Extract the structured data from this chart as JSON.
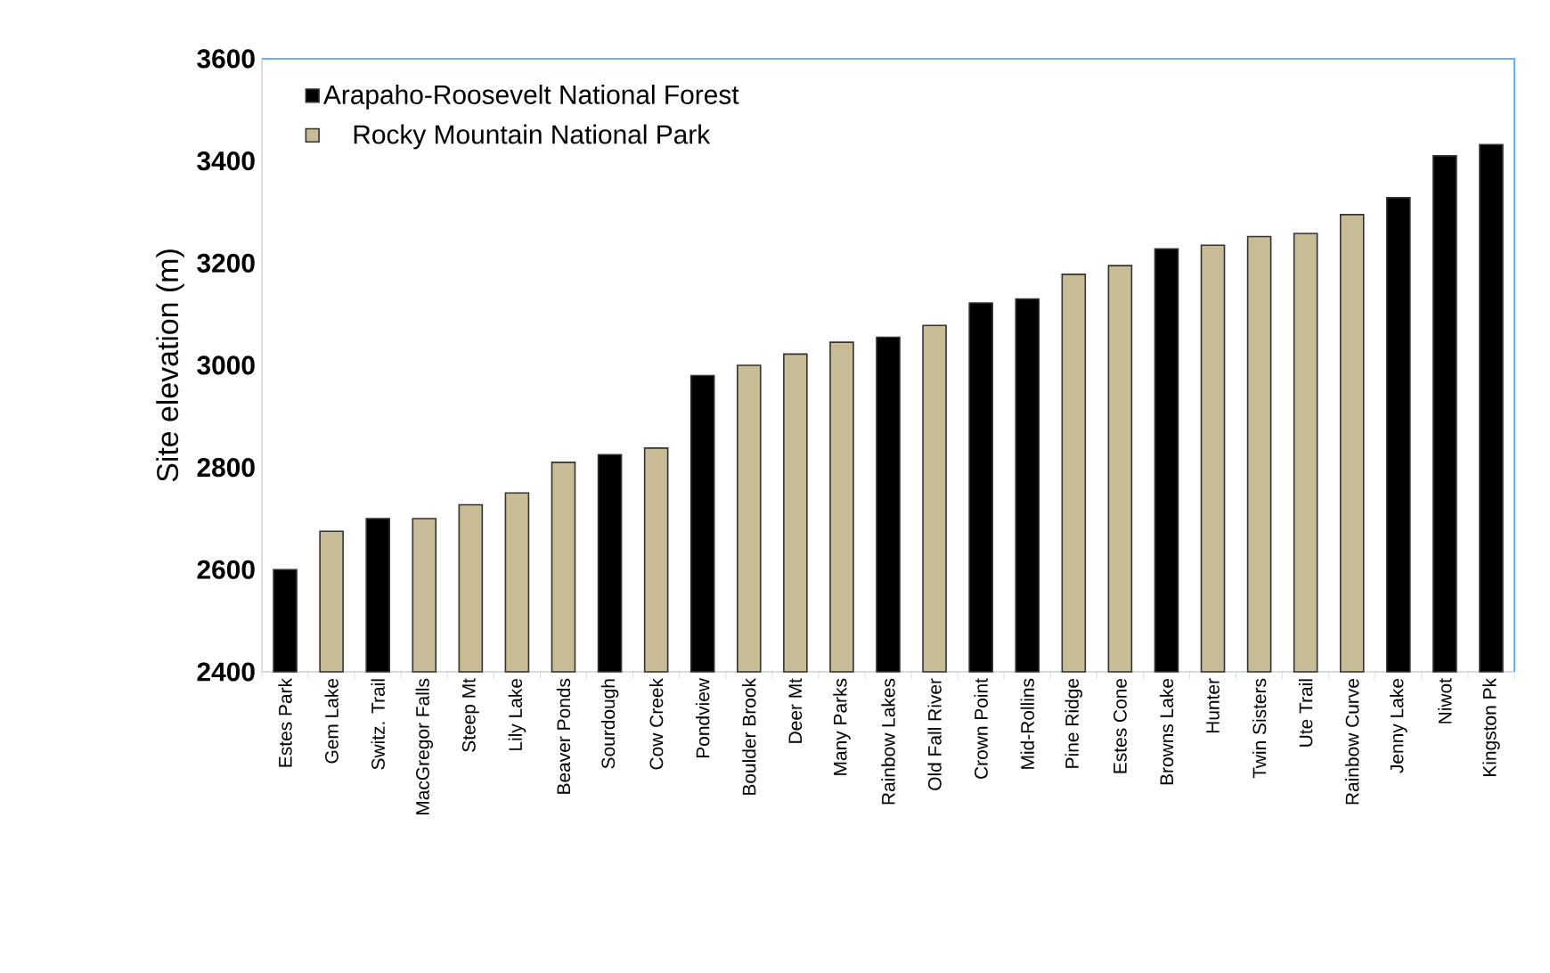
{
  "chart_data": {
    "type": "bar",
    "ylabel": "Site elevation (m)",
    "categories": [
      "Estes Park",
      "Gem Lake",
      "Switz. Trail",
      "MacGregor Falls",
      "Steep Mt",
      "Lily Lake",
      "Beaver Ponds",
      "Sourdough",
      "Cow Creek",
      "Pondview",
      "Boulder Brook",
      "Deer Mt",
      "Many Parks",
      "Rainbow Lakes",
      "Old Fall River",
      "Crown Point",
      "Mid-Rollins",
      "Pine Ridge",
      "Estes Cone",
      "Browns Lake",
      "Hunter",
      "Twin Sisters",
      "Ute Trail",
      "Rainbow Curve",
      "Jenny Lake",
      "Niwot",
      "Kingston Pk"
    ],
    "series": [
      {
        "name": "Arapaho-Roosevelt National Forest",
        "color": "#000000",
        "values": [
          2600,
          null,
          2700,
          null,
          null,
          null,
          null,
          2825,
          null,
          2980,
          null,
          null,
          null,
          3055,
          null,
          3122,
          3130,
          null,
          null,
          3228,
          null,
          null,
          null,
          null,
          3328,
          3410,
          3432
        ]
      },
      {
        "name": "Rocky Mountain National Park",
        "color": "#c8bc96",
        "values": [
          null,
          2675,
          null,
          2700,
          2727,
          2750,
          2810,
          null,
          2838,
          null,
          3000,
          3022,
          3045,
          null,
          3078,
          null,
          null,
          3178,
          3195,
          null,
          3235,
          3252,
          3258,
          3295,
          null,
          null,
          null
        ]
      }
    ],
    "ylim": [
      2400,
      3600
    ],
    "yticks": [
      2400,
      2600,
      2800,
      3000,
      3200,
      3400,
      3600
    ],
    "grid": false,
    "legend": "top left"
  }
}
